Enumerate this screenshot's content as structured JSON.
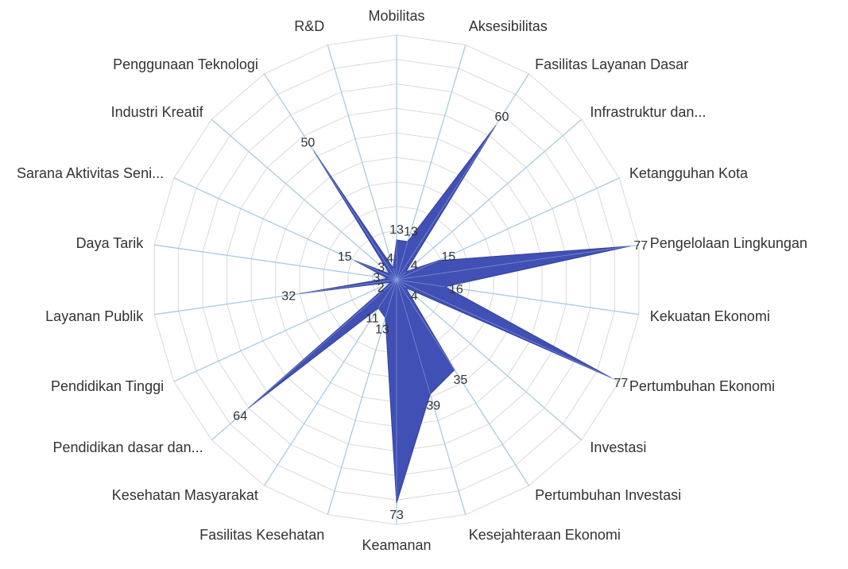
{
  "chart_data": {
    "type": "radar",
    "title": "",
    "categories": [
      "Mobilitas",
      "Aksesibilitas",
      "Fasilitas Layanan Dasar",
      "Infrastruktur dan...",
      "Ketangguhan Kota",
      "Pengelolaan Lingkungan",
      "Kekuatan Ekonomi",
      "Pertumbuhan Ekonomi",
      "Investasi",
      "Pertumbuhan Investasi",
      "Kesejahteraan Ekonomi",
      "Keamanan",
      "Fasilitas Kesehatan",
      "Kesehatan Masyarakat",
      "Pendidikan dasar dan...",
      "Pendidikan Tinggi",
      "Layanan Publik",
      "Daya Tarik",
      "Sarana Aktivitas Seni...",
      "Industri Kreatif",
      "Penggunaan Teknologi",
      "R&D"
    ],
    "values": [
      13,
      13,
      60,
      4,
      15,
      77,
      16,
      77,
      4,
      35,
      39,
      73,
      13,
      11,
      64,
      2,
      32,
      3,
      15,
      3,
      50,
      4
    ],
    "label_text": [
      "13",
      "13",
      "60",
      "4",
      "15",
      "77",
      "16",
      "77",
      "4",
      "35",
      "39",
      "73",
      "13",
      "11",
      "64",
      "2",
      "32",
      "3",
      "15",
      "3",
      "50",
      "4"
    ],
    "rmax": 80,
    "ring_step": 8,
    "grid": true,
    "legend": "none",
    "colors": {
      "fill": "#4150b5",
      "stroke": "#36419a",
      "axis": "#a7cbe3",
      "grid": "#d9d9d9"
    }
  }
}
